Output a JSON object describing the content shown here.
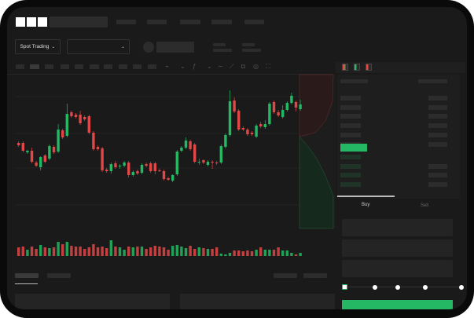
{
  "app": {
    "logo_text": "OKX"
  },
  "toolbar": {
    "market_type_label": "Spot Trading",
    "pair_dropdown_value": ""
  },
  "order_form": {
    "tabs": [
      {
        "label": "Buy",
        "active": true
      },
      {
        "label": "Sell",
        "active": false
      }
    ],
    "leverage_slider": {
      "value_percent": 0,
      "steps": 5
    }
  },
  "colors": {
    "up": "#25b864",
    "down": "#e04848",
    "background": "#1a1a1a",
    "accent_button": "#25b864"
  },
  "icons": [
    "chevron-down-icon",
    "line-tool-icon",
    "ruler-icon",
    "camera-icon",
    "settings-icon",
    "fullscreen-icon",
    "orderbook-both-icon",
    "orderbook-bids-icon",
    "orderbook-asks-icon"
  ],
  "chart_data": {
    "type": "candlestick",
    "title": "",
    "xlabel": "",
    "ylabel": "",
    "grid": true,
    "ohlc": [
      [
        68,
        70,
        63,
        65
      ],
      [
        68,
        70,
        56,
        58
      ],
      [
        56,
        59,
        54,
        58
      ],
      [
        58,
        62,
        42,
        44
      ],
      [
        43,
        45,
        37,
        39
      ],
      [
        37,
        51,
        33,
        50
      ],
      [
        52,
        54,
        42,
        44
      ],
      [
        48,
        66,
        46,
        64
      ],
      [
        63,
        65,
        54,
        56
      ],
      [
        57,
        92,
        55,
        85
      ],
      [
        84,
        86,
        73,
        75
      ],
      [
        77,
        118,
        75,
        105
      ],
      [
        107,
        109,
        100,
        102
      ],
      [
        104,
        106,
        99,
        101
      ],
      [
        104,
        109,
        91,
        93
      ],
      [
        101,
        103,
        96,
        98
      ],
      [
        102,
        104,
        79,
        81
      ],
      [
        81,
        83,
        58,
        60
      ],
      [
        63,
        65,
        58,
        60
      ],
      [
        61,
        63,
        31,
        33
      ],
      [
        34,
        36,
        30,
        32
      ],
      [
        32,
        43,
        29,
        41
      ],
      [
        42,
        45,
        35,
        37
      ],
      [
        38,
        41,
        35,
        39
      ],
      [
        39,
        45,
        37,
        43
      ],
      [
        43,
        45,
        24,
        27
      ],
      [
        27,
        33,
        25,
        31
      ],
      [
        32,
        34,
        27,
        29
      ],
      [
        30,
        42,
        28,
        40
      ],
      [
        41,
        43,
        37,
        39
      ],
      [
        42,
        44,
        30,
        32
      ],
      [
        42,
        44,
        28,
        32
      ],
      [
        33,
        35,
        31,
        32
      ],
      [
        32,
        34,
        20,
        22
      ],
      [
        23,
        25,
        20,
        21
      ],
      [
        20,
        28,
        18,
        27
      ],
      [
        28,
        59,
        26,
        57
      ],
      [
        58,
        64,
        56,
        62
      ],
      [
        62,
        75,
        60,
        71
      ],
      [
        70,
        72,
        58,
        60
      ],
      [
        66,
        68,
        42,
        44
      ],
      [
        43,
        48,
        40,
        44
      ],
      [
        46,
        47,
        41,
        43
      ],
      [
        40,
        46,
        38,
        44
      ],
      [
        44,
        46,
        35,
        43
      ],
      [
        43,
        45,
        40,
        42
      ],
      [
        43,
        66,
        41,
        64
      ],
      [
        63,
        80,
        61,
        78
      ],
      [
        78,
        135,
        76,
        121
      ],
      [
        122,
        126,
        106,
        108
      ],
      [
        109,
        111,
        83,
        85
      ],
      [
        87,
        89,
        83,
        85
      ],
      [
        85,
        87,
        77,
        79
      ],
      [
        81,
        83,
        77,
        79
      ],
      [
        76,
        92,
        74,
        90
      ],
      [
        92,
        95,
        87,
        89
      ],
      [
        88,
        97,
        86,
        92
      ],
      [
        92,
        120,
        90,
        118
      ],
      [
        120,
        122,
        105,
        107
      ],
      [
        107,
        110,
        101,
        103
      ],
      [
        101,
        116,
        99,
        110
      ],
      [
        110,
        121,
        108,
        119
      ],
      [
        119,
        132,
        117,
        128
      ],
      [
        120,
        122,
        108,
        113
      ],
      [
        111,
        123,
        109,
        117
      ]
    ],
    "volume": [
      11,
      12,
      8,
      12,
      9,
      14,
      11,
      10,
      11,
      18,
      15,
      18,
      13,
      12,
      12,
      9,
      11,
      15,
      11,
      12,
      10,
      20,
      12,
      11,
      8,
      12,
      11,
      12,
      12,
      9,
      11,
      13,
      12,
      11,
      8,
      13,
      14,
      12,
      10,
      13,
      9,
      11,
      10,
      9,
      9,
      11,
      3,
      2,
      4,
      7,
      7,
      6,
      7,
      6,
      8,
      11,
      8,
      8,
      8,
      11,
      7,
      7,
      4,
      2,
      4
    ]
  }
}
